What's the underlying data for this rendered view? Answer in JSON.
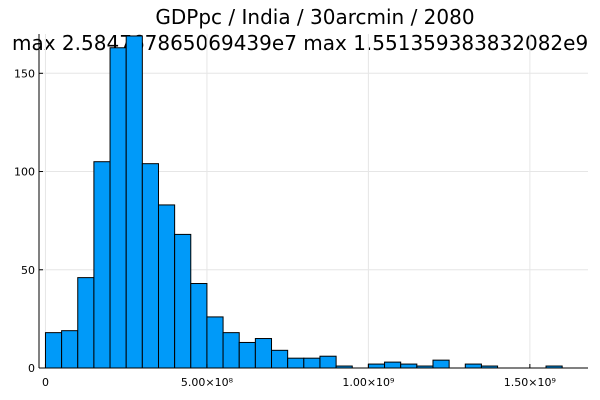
{
  "chart_data": {
    "type": "bar",
    "title": "GDPpc / India / 30arcmin / 2080",
    "subtitle": "max 2.584767865069439e7  max 1.551359383832082e9",
    "xlabel": "",
    "ylabel": "",
    "bin_width": 50000000,
    "bin_starts": [
      0,
      50000000,
      100000000,
      150000000,
      200000000,
      250000000,
      300000000,
      350000000,
      400000000,
      450000000,
      500000000,
      550000000,
      600000000,
      650000000,
      700000000,
      750000000,
      800000000,
      850000000,
      900000000,
      950000000,
      1000000000,
      1050000000,
      1100000000,
      1150000000,
      1200000000,
      1250000000,
      1300000000,
      1350000000,
      1400000000,
      1450000000,
      1500000000,
      1550000000
    ],
    "values": [
      18,
      19,
      46,
      105,
      163,
      169,
      104,
      83,
      68,
      43,
      26,
      18,
      13,
      15,
      9,
      5,
      5,
      6,
      1,
      0,
      2,
      3,
      2,
      1,
      4,
      0,
      2,
      1,
      0,
      0,
      0,
      1
    ],
    "xlim": [
      -20000000,
      1680000000
    ],
    "ylim": [
      0,
      170
    ],
    "x_ticks": [
      0,
      500000000,
      1000000000,
      1500000000
    ],
    "x_tick_labels": [
      "0",
      "5.00×10⁸",
      "1.00×10⁹",
      "1.50×10⁹"
    ],
    "y_ticks": [
      0,
      50,
      100,
      150
    ],
    "y_tick_labels": [
      "0",
      "50",
      "100",
      "150"
    ],
    "grid": true,
    "legend": false,
    "colors": {
      "bar": "#009af9",
      "grid": "#e6e6e6",
      "axis": "#000000"
    }
  }
}
